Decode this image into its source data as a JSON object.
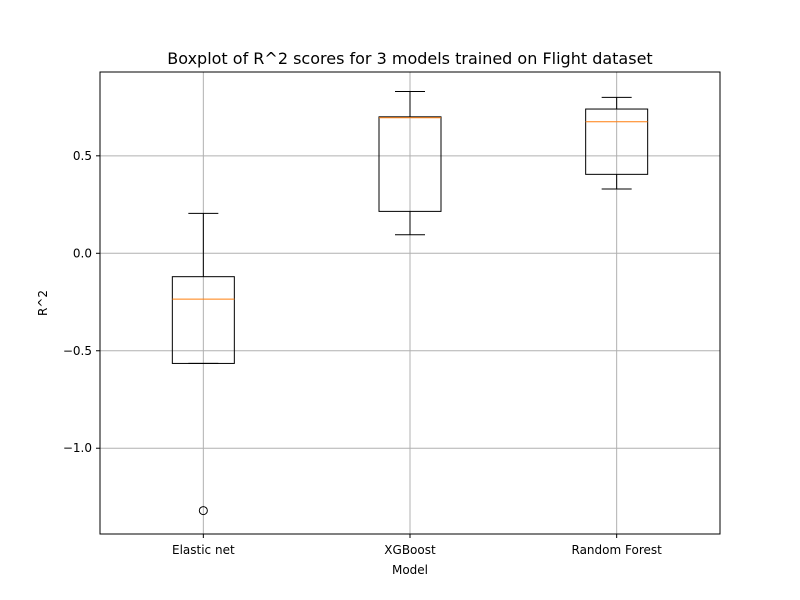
{
  "chart_data": {
    "type": "boxplot",
    "title": "Boxplot of R^2 scores for 3 models trained on Flight dataset",
    "xlabel": "Model",
    "ylabel": "R^2",
    "ylim": [
      -1.44,
      0.93
    ],
    "yticks": [
      {
        "value": -1.0,
        "label": "−1.0"
      },
      {
        "value": -0.5,
        "label": "−0.5"
      },
      {
        "value": 0.0,
        "label": "0.0"
      },
      {
        "value": 0.5,
        "label": "0.5"
      }
    ],
    "categories": [
      "Elastic net",
      "XGBoost",
      "Random Forest"
    ],
    "boxes": [
      {
        "name": "Elastic net",
        "whisker_low": -0.565,
        "q1": -0.565,
        "median": -0.235,
        "q3": -0.12,
        "whisker_high": 0.205,
        "outliers": [
          -1.32
        ]
      },
      {
        "name": "XGBoost",
        "whisker_low": 0.095,
        "q1": 0.215,
        "median": 0.695,
        "q3": 0.7,
        "whisker_high": 0.83,
        "outliers": []
      },
      {
        "name": "Random Forest",
        "whisker_low": 0.33,
        "q1": 0.405,
        "median": 0.675,
        "q3": 0.74,
        "whisker_high": 0.8,
        "outliers": []
      }
    ],
    "grid": true,
    "colors": {
      "box": "#000000",
      "median": "#ff7f0e",
      "grid": "#b0b0b0"
    }
  }
}
